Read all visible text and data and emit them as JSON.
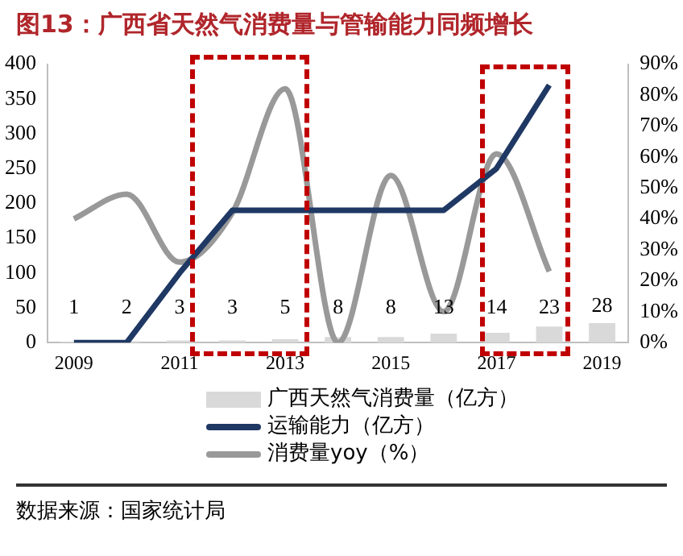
{
  "chart_data": {
    "type": "bar",
    "title": "图13：广西省天然气消费量与管输能力同频增长",
    "categories": [
      "2009",
      null,
      "2011",
      null,
      "2013",
      null,
      "2015",
      null,
      "2017",
      null,
      "2019"
    ],
    "series": [
      {
        "name": "广西天然气消费量（亿方）",
        "color": "#d9d9d9",
        "values": [
          1,
          2,
          3,
          3,
          5,
          8,
          8,
          13,
          14,
          23,
          28
        ],
        "value_labels": [
          "1",
          "2",
          "3",
          "3",
          "5",
          "8",
          "8",
          "13",
          "14",
          "23",
          "28"
        ]
      },
      {
        "name": "运输能力（亿方）",
        "type": "line",
        "color": "#1f3864",
        "values": [
          0,
          0,
          100,
          190,
          190,
          190,
          190,
          190,
          250,
          370,
          null
        ]
      },
      {
        "name": "消费量yoy（%）",
        "type": "line",
        "axis": "y2",
        "color": "#999999",
        "values": [
          40,
          48,
          26,
          42,
          82,
          0,
          54,
          10,
          61,
          23,
          null
        ]
      }
    ],
    "ylim": [
      0,
      400
    ],
    "yticks": [
      0,
      50,
      100,
      150,
      200,
      250,
      300,
      350,
      400
    ],
    "y2lim": [
      0,
      90
    ],
    "y2ticks": [
      {
        "value": 0,
        "label": "0%"
      },
      {
        "value": 10,
        "label": "10%"
      },
      {
        "value": 20,
        "label": "20%"
      },
      {
        "value": 30,
        "label": "30%"
      },
      {
        "value": 40,
        "label": "40%"
      },
      {
        "value": 50,
        "label": "50%"
      },
      {
        "value": 60,
        "label": "60%"
      },
      {
        "value": 70,
        "label": "70%"
      },
      {
        "value": 80,
        "label": "80%"
      },
      {
        "value": 90,
        "label": "90%"
      }
    ],
    "grid": false,
    "legend": "bottom",
    "marker": "none",
    "annotations": [
      "数据来源：国家统计局"
    ]
  }
}
